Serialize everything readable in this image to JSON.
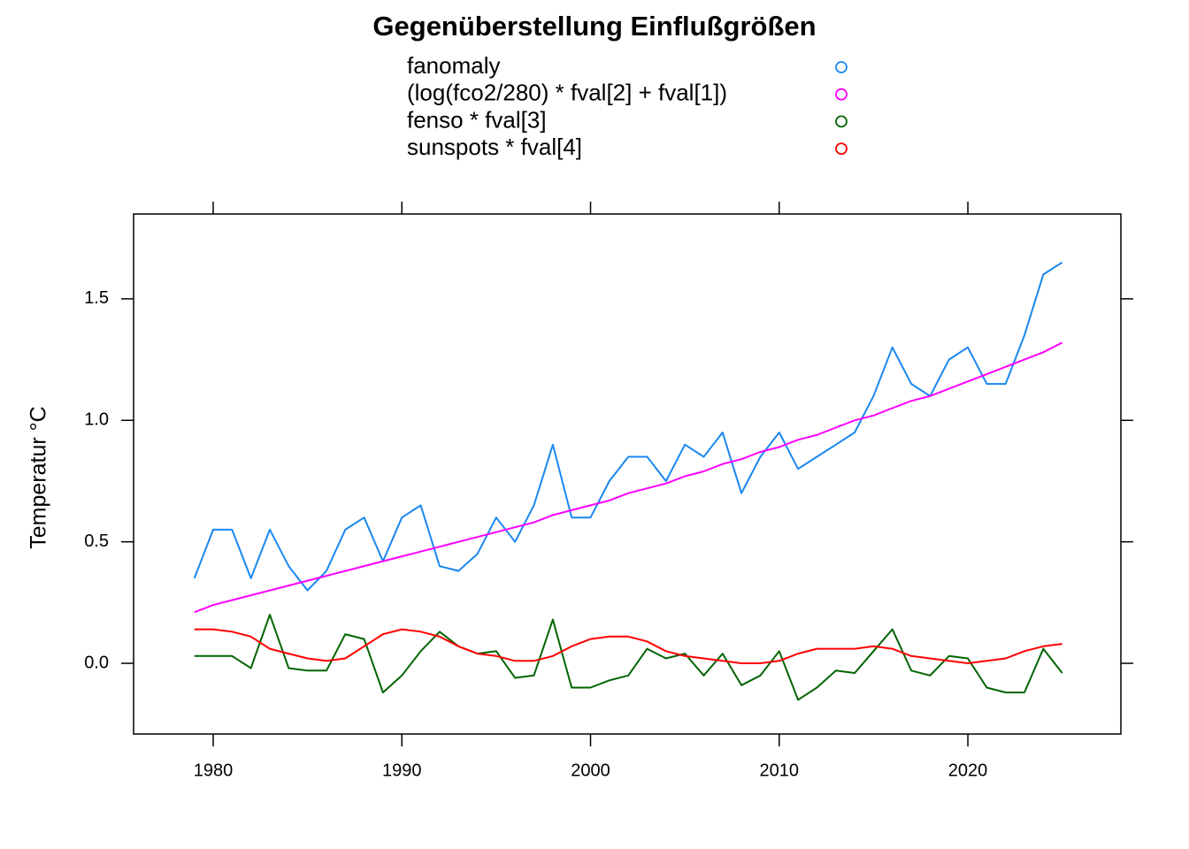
{
  "chart_data": {
    "type": "line",
    "title": "Gegenüberstellung Einflußgrößen",
    "y_label": "Temperatur °C",
    "x": [
      1979,
      1980,
      1981,
      1982,
      1983,
      1984,
      1985,
      1986,
      1987,
      1988,
      1989,
      1990,
      1991,
      1992,
      1993,
      1994,
      1995,
      1996,
      1997,
      1998,
      1999,
      2000,
      2001,
      2002,
      2003,
      2004,
      2005,
      2006,
      2007,
      2008,
      2009,
      2010,
      2011,
      2012,
      2013,
      2014,
      2015,
      2016,
      2017,
      2018,
      2019,
      2020,
      2021,
      2022,
      2023,
      2024,
      2025
    ],
    "series": [
      {
        "name": "fanomaly",
        "color": "#1a87f0",
        "values": [
          0.35,
          0.55,
          0.55,
          0.35,
          0.55,
          0.4,
          0.3,
          0.38,
          0.55,
          0.6,
          0.42,
          0.6,
          0.65,
          0.4,
          0.38,
          0.45,
          0.6,
          0.5,
          0.65,
          0.9,
          0.6,
          0.6,
          0.75,
          0.85,
          0.85,
          0.75,
          0.9,
          0.85,
          0.95,
          0.7,
          0.85,
          0.95,
          0.8,
          0.85,
          0.9,
          0.95,
          1.1,
          1.3,
          1.15,
          1.1,
          1.25,
          1.3,
          1.15,
          1.15,
          1.35,
          1.6,
          1.65
        ]
      },
      {
        "name": "(log(fco2/280) * fval[2] + fval[1])",
        "color": "#ff00ff",
        "values": [
          0.21,
          0.24,
          0.26,
          0.28,
          0.3,
          0.32,
          0.34,
          0.36,
          0.38,
          0.4,
          0.42,
          0.44,
          0.46,
          0.48,
          0.5,
          0.52,
          0.54,
          0.56,
          0.58,
          0.61,
          0.63,
          0.65,
          0.67,
          0.7,
          0.72,
          0.74,
          0.77,
          0.79,
          0.82,
          0.84,
          0.87,
          0.89,
          0.92,
          0.94,
          0.97,
          1.0,
          1.02,
          1.05,
          1.08,
          1.1,
          1.13,
          1.16,
          1.19,
          1.22,
          1.25,
          1.28,
          1.32
        ]
      },
      {
        "name": "fenso * fval[3]",
        "color": "#006400",
        "values": [
          0.03,
          0.03,
          0.03,
          -0.02,
          0.2,
          -0.02,
          -0.03,
          -0.03,
          0.12,
          0.1,
          -0.12,
          -0.05,
          0.05,
          0.13,
          0.07,
          0.04,
          0.05,
          -0.06,
          -0.05,
          0.18,
          -0.1,
          -0.1,
          -0.07,
          -0.05,
          0.06,
          0.02,
          0.04,
          -0.05,
          0.04,
          -0.09,
          -0.05,
          0.05,
          -0.15,
          -0.1,
          -0.03,
          -0.04,
          0.05,
          0.14,
          -0.03,
          -0.05,
          0.03,
          0.02,
          -0.1,
          -0.12,
          -0.12,
          0.06,
          -0.04
        ]
      },
      {
        "name": "sunspots * fval[4]",
        "color": "#ff0000",
        "values": [
          0.14,
          0.14,
          0.13,
          0.11,
          0.06,
          0.04,
          0.02,
          0.01,
          0.02,
          0.07,
          0.12,
          0.14,
          0.13,
          0.11,
          0.07,
          0.04,
          0.03,
          0.01,
          0.01,
          0.03,
          0.07,
          0.1,
          0.11,
          0.11,
          0.09,
          0.05,
          0.03,
          0.02,
          0.01,
          0.0,
          0.0,
          0.01,
          0.04,
          0.06,
          0.06,
          0.06,
          0.07,
          0.06,
          0.03,
          0.02,
          0.01,
          0.0,
          0.01,
          0.02,
          0.05,
          0.07,
          0.08
        ]
      }
    ],
    "xlim": [
      1975.78,
      2028.11
    ],
    "xticks": [
      1980,
      1990,
      2000,
      2010,
      2020
    ],
    "ylim": [
      -0.291,
      1.849
    ],
    "yticks": [
      {
        "value": 0,
        "label": "0.0"
      },
      0.5,
      {
        "value": 1,
        "label": "1.0"
      },
      1.5
    ],
    "legend": "top"
  }
}
